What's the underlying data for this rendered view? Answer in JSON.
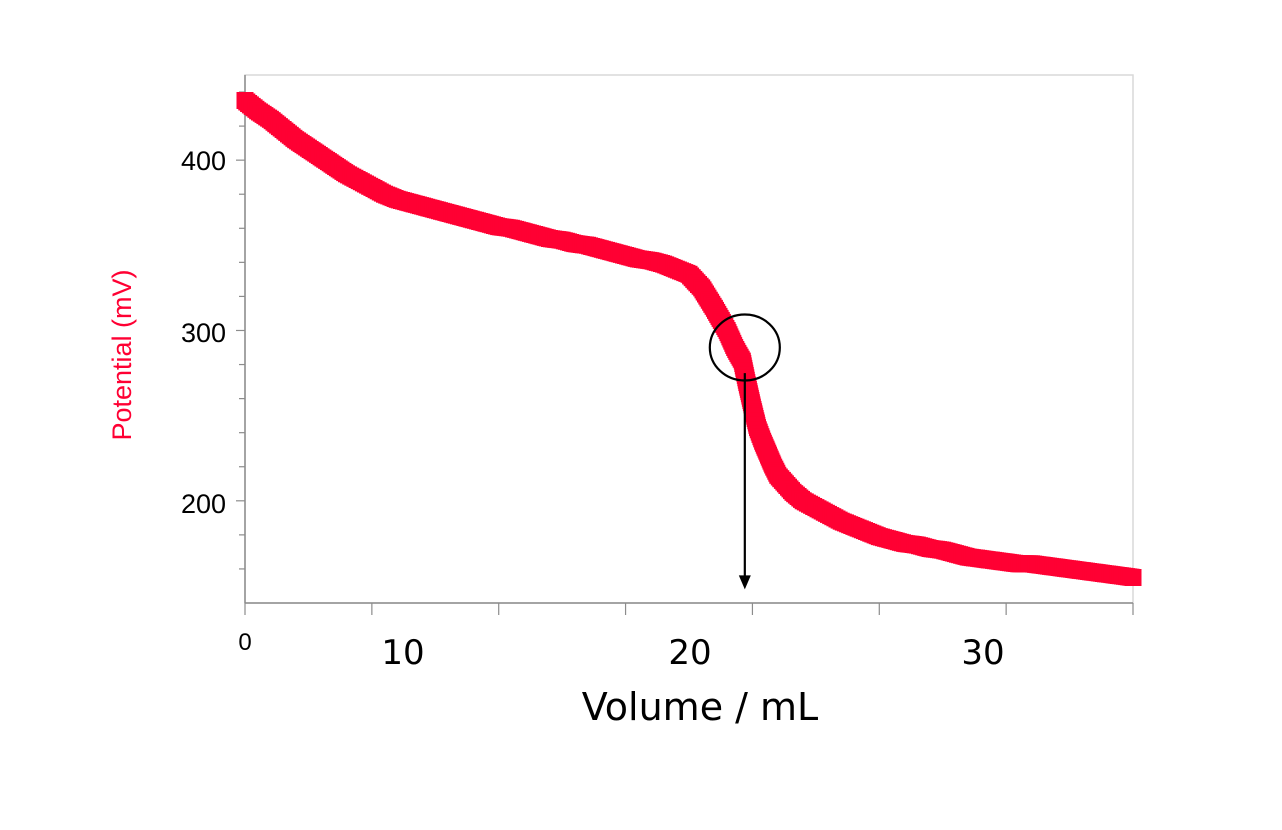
{
  "chart_data": {
    "type": "scatter",
    "title": "",
    "xlabel": "Volume / mL",
    "ylabel": "Potential (mV)",
    "xlim": [
      0,
      35
    ],
    "ylim": [
      140,
      450
    ],
    "x_tick_labels": [
      "0",
      "10",
      "20",
      "30"
    ],
    "x_tick_values": [
      0,
      10,
      20,
      30
    ],
    "y_tick_labels": [
      "200",
      "300",
      "400"
    ],
    "y_tick_values": [
      200,
      300,
      400
    ],
    "grid": false,
    "colors": {
      "series": "#ff0033",
      "ylabel": "#ff0033",
      "annotation": "#000000"
    },
    "series": [
      {
        "x": [
          0,
          0.5,
          1,
          1.5,
          2,
          2.5,
          3,
          3.5,
          4,
          4.5,
          5,
          5.5,
          6,
          6.5,
          7,
          7.5,
          8,
          8.5,
          9,
          9.5,
          10,
          10.5,
          11,
          11.5,
          12,
          12.5,
          13,
          13.5,
          14,
          14.5,
          15,
          15.5,
          16,
          16.5,
          17,
          17.5,
          18,
          18.5,
          19,
          19.3,
          19.6,
          19.8,
          20,
          20.2,
          20.4,
          20.6,
          20.8,
          21,
          21.3,
          21.6,
          22,
          22.5,
          23,
          23.5,
          24,
          24.5,
          25,
          25.5,
          26,
          26.5,
          27,
          27.5,
          28,
          28.5,
          29,
          29.5,
          30,
          30.5,
          31,
          31.5,
          32,
          32.5,
          33,
          33.5,
          34,
          34.5,
          35
        ],
        "y": [
          435,
          429,
          424,
          418,
          412,
          407,
          402,
          397,
          392,
          388,
          384,
          380,
          377,
          375,
          373,
          371,
          369,
          367,
          365,
          363,
          361,
          360,
          358,
          356,
          354,
          353,
          351,
          350,
          348,
          346,
          344,
          342,
          341,
          339,
          336,
          333,
          325,
          313,
          300,
          290,
          282,
          268,
          255,
          243,
          235,
          228,
          221,
          215,
          210,
          205,
          200,
          196,
          192,
          188,
          185,
          182,
          179,
          177,
          175,
          174,
          172,
          171,
          169,
          167,
          166,
          165,
          164,
          163,
          163,
          162,
          161,
          160,
          159,
          158,
          157,
          156,
          155
        ]
      }
    ],
    "annotations": [
      {
        "type": "circle",
        "x": 19.7,
        "y": 290
      },
      {
        "type": "arrow",
        "x": 19.7,
        "y_from": 275,
        "y_to": 148
      }
    ]
  }
}
